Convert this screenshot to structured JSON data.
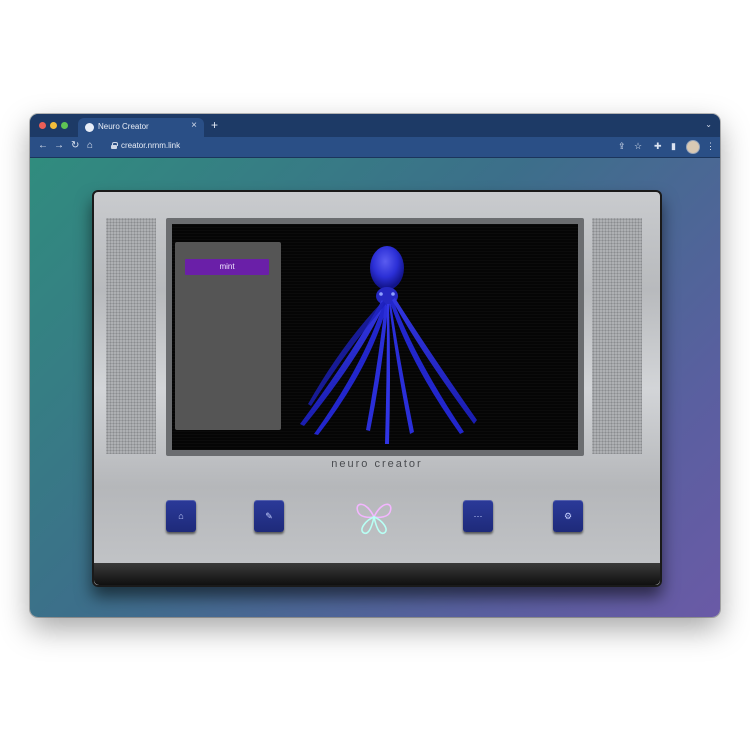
{
  "browser": {
    "tab_title": "Neuro Creator",
    "tab_close": "×",
    "new_tab": "+",
    "tab_menu": "⌄",
    "url": "creator.nrnm.link",
    "nav": {
      "back": "←",
      "forward": "→",
      "reload": "↻",
      "home": "⌂"
    },
    "toolbar_icons": {
      "share": "⇪",
      "star": "☆",
      "extensions": "✚",
      "sidebar": "▮",
      "menu": "⋮"
    }
  },
  "app": {
    "panel_button_label": "mint",
    "brand_text": "neuro creator",
    "keys": [
      {
        "icon": "home-icon",
        "glyph": "⌂"
      },
      {
        "icon": "edit-icon",
        "glyph": "✎"
      },
      {
        "icon": "grid-icon",
        "glyph": "⋯"
      },
      {
        "icon": "settings-icon",
        "glyph": "⚙"
      }
    ],
    "colors": {
      "mint_button": "#6a1fa8",
      "keys": "#2b3a99",
      "octopus": "#2b2fd6",
      "browser_chrome": "#2a4f86"
    }
  }
}
